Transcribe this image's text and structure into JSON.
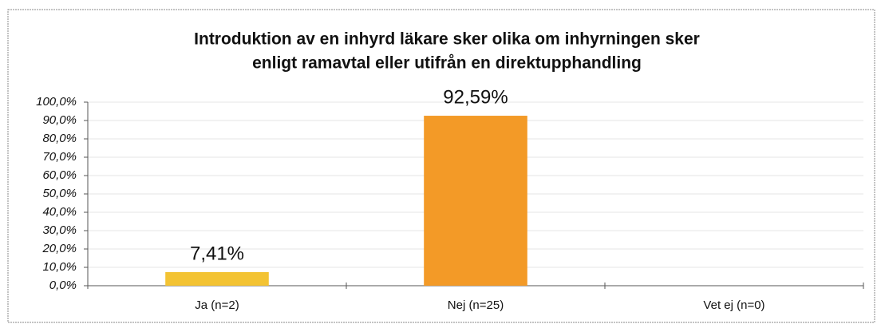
{
  "chart_data": {
    "type": "bar",
    "title": [
      "Introduktion av en inhyrd läkare sker olika om inhyrningen sker",
      "enligt ramavtal eller utifrån en direktupphandling"
    ],
    "categories": [
      "Ja (n=2)",
      "Nej (n=25)",
      "Vet ej (n=0)"
    ],
    "values": [
      7.41,
      92.59,
      0
    ],
    "value_labels": [
      "7,41%",
      "92,59%",
      null
    ],
    "colors": [
      "#f3c333",
      "#f39a27",
      "#f39a27"
    ],
    "ylim": [
      0,
      100
    ],
    "yticks": [
      {
        "value": 0,
        "label": "0,0%"
      },
      {
        "value": 10,
        "label": "10,0%"
      },
      {
        "value": 20,
        "label": "20,0%"
      },
      {
        "value": 30,
        "label": "30,0%"
      },
      {
        "value": 40,
        "label": "40,0%"
      },
      {
        "value": 50,
        "label": "50,0%"
      },
      {
        "value": 60,
        "label": "60,0%"
      },
      {
        "value": 70,
        "label": "70,0%"
      },
      {
        "value": 80,
        "label": "80,0%"
      },
      {
        "value": 90,
        "label": "90,0%"
      },
      {
        "value": 100,
        "label": "100,0%"
      }
    ],
    "grid": true
  }
}
